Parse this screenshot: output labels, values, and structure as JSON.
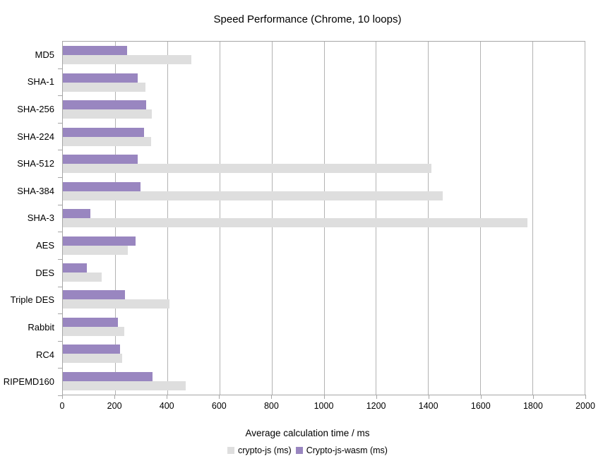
{
  "title": "Speed Performance (Chrome, 10 loops)",
  "chart_data": {
    "type": "bar",
    "orientation": "horizontal",
    "title": "Speed Performance (Chrome, 10 loops)",
    "xlabel": "Average calculation time / ms",
    "ylabel": "",
    "categories": [
      "MD5",
      "SHA-1",
      "SHA-256",
      "SHA-224",
      "SHA-512",
      "SHA-384",
      "SHA-3",
      "AES",
      "DES",
      "Triple DES",
      "Rabbit",
      "RC4",
      "RIPEMD160"
    ],
    "series": [
      {
        "name": "crypto-js (ms)",
        "color": "#dedede",
        "values": [
          492,
          317,
          342,
          337,
          1414,
          1455,
          1781,
          250,
          149,
          408,
          235,
          228,
          472
        ]
      },
      {
        "name": "Crypto-js-wasm (ms)",
        "color": "#9986c0",
        "values": [
          246,
          287,
          319,
          312,
          288,
          299,
          105,
          278,
          93,
          238,
          212,
          218,
          343
        ]
      }
    ],
    "bar_order_top_to_bottom": [
      "Crypto-js-wasm (ms)",
      "crypto-js (ms)"
    ],
    "xlim": [
      0,
      2000
    ],
    "xticks": [
      0,
      200,
      400,
      600,
      800,
      1000,
      1200,
      1400,
      1600,
      1800,
      2000
    ],
    "grid": true,
    "gridline_color": "#b3b3b3",
    "axis_color": "#a6a6a6",
    "legend_position": "bottom"
  }
}
